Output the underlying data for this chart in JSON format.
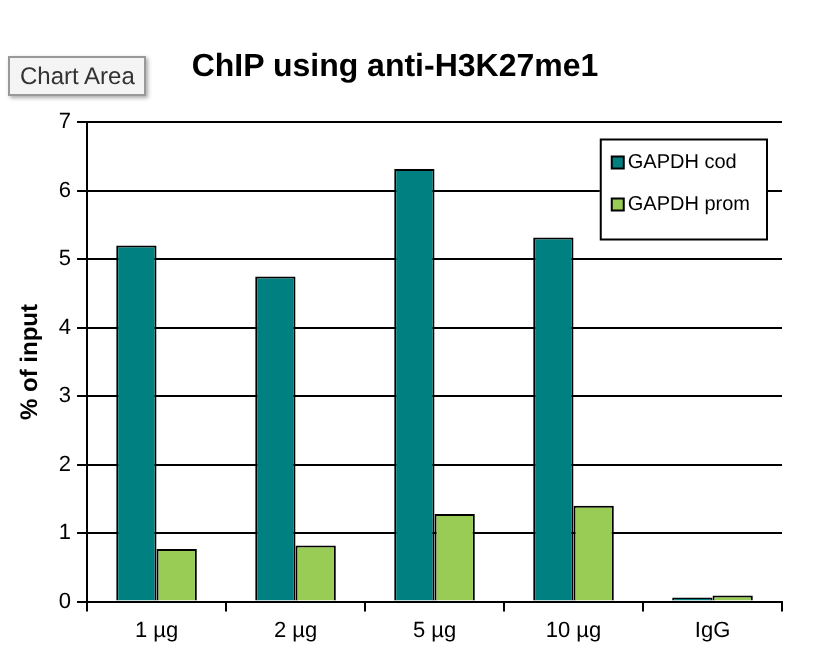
{
  "chart_data": {
    "type": "bar",
    "title": "ChIP using anti-H3K27me1",
    "ylabel": "% of input",
    "categories": [
      "1 µg",
      "2 µg",
      "5 µg",
      "10 µg",
      "IgG"
    ],
    "series": [
      {
        "name": "GAPDH cod",
        "color": "#008080",
        "values": [
          5.2,
          4.75,
          6.32,
          5.32,
          0.06
        ]
      },
      {
        "name": "GAPDH prom",
        "color": "#99cc55",
        "values": [
          0.77,
          0.82,
          1.28,
          1.4,
          0.09
        ]
      }
    ],
    "ylim": [
      0,
      7
    ],
    "yticks": [
      0,
      1,
      2,
      3,
      4,
      5,
      6,
      7
    ],
    "grid": "y",
    "legend": "top right",
    "annotations": [
      "Chart Area"
    ]
  }
}
